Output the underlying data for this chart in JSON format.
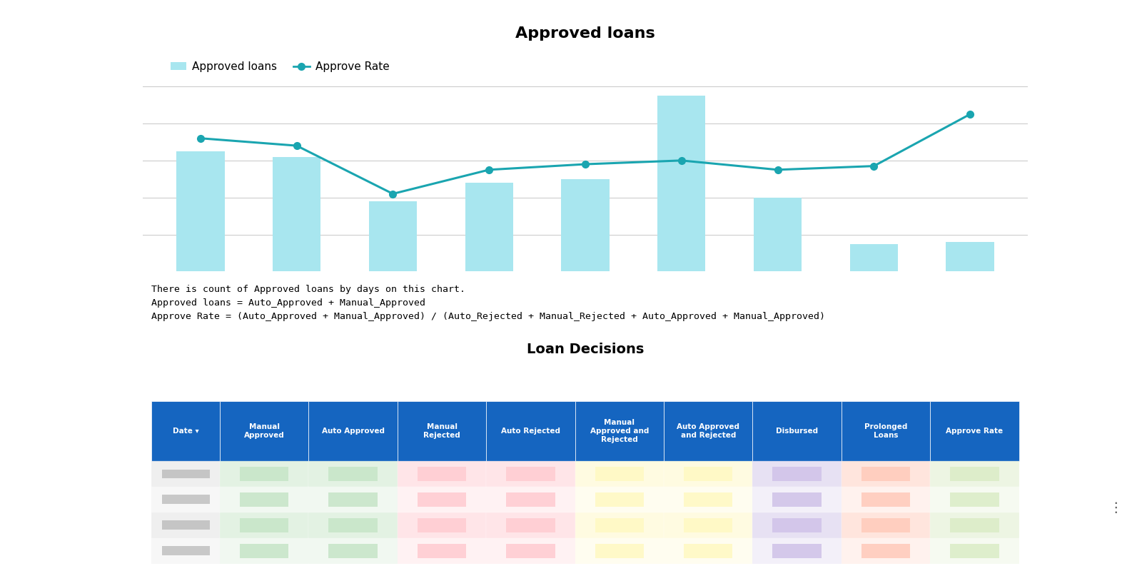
{
  "title_top": "Approved loans",
  "title_bottom": "Loan Decisions",
  "bar_values": [
    6.5,
    6.2,
    3.8,
    4.8,
    5.0,
    9.5,
    4.0,
    1.5,
    1.6
  ],
  "line_values": [
    7.2,
    6.8,
    4.2,
    5.5,
    5.8,
    6.0,
    5.5,
    5.7,
    8.5
  ],
  "bar_color": "#a8e6ef",
  "line_color": "#1aa5b0",
  "background_color": "#ffffff",
  "grid_color": "#cccccc",
  "annotation_lines": [
    "There is count of Approved loans by days on this chart.",
    "Approved loans = Auto_Approved + Manual_Approved",
    "Approve Rate = (Auto_Approved + Manual_Approved) / (Auto_Rejected + Manual_Rejected + Auto_Approved + Manual_Approved)"
  ],
  "table_header_bg": "#1565c0",
  "table_header_text": "#ffffff",
  "table_columns": [
    "Date ▾",
    "Manual\nApproved",
    "Auto Approved",
    "Manual\nRejected",
    "Auto Rejected",
    "Manual\nApproved and\nRejected",
    "Auto Approved\nand Rejected",
    "Disbursed",
    "Prolonged\nLoans",
    "Approve Rate"
  ],
  "col_colors": [
    "#e0e0e0",
    "#c8e6c9",
    "#c8e6c9",
    "#ffcdd2",
    "#ffcdd2",
    "#fff9c4",
    "#fff9c4",
    "#d1c4e9",
    "#ffccbc",
    "#dcedc8"
  ],
  "three_dots": "⋮",
  "legend_bar_label": "Approved loans",
  "legend_line_label": "Approve Rate"
}
